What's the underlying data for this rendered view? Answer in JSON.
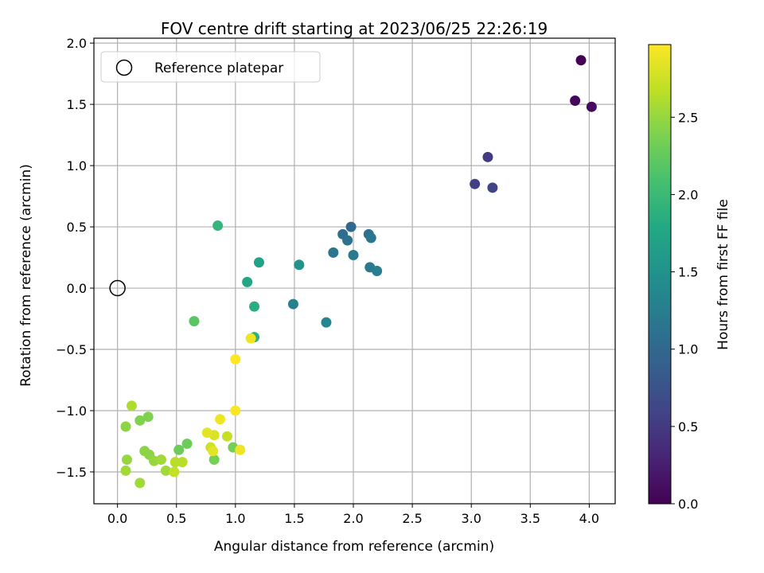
{
  "chart_data": {
    "type": "scatter",
    "title": "FOV centre drift starting at 2023/06/25 22:26:19",
    "xlabel": "Angular distance from reference (arcmin)",
    "ylabel": "Rotation from reference (arcmin)",
    "xlim": [
      -0.2,
      4.22
    ],
    "ylim": [
      -1.76,
      2.04
    ],
    "xticks": [
      "0.0",
      "0.5",
      "1.0",
      "1.5",
      "2.0",
      "2.5",
      "3.0",
      "3.5",
      "4.0"
    ],
    "yticks": [
      "−1.5",
      "−1.0",
      "−0.5",
      "0.0",
      "0.5",
      "1.0",
      "1.5",
      "2.0"
    ],
    "grid": true,
    "legend": {
      "position": "top-left",
      "entries": [
        "Reference platepar"
      ]
    },
    "colorbar": {
      "label": "Hours from first FF file",
      "range": [
        0.0,
        2.97
      ],
      "ticks": [
        "0.0",
        "0.5",
        "1.0",
        "1.5",
        "2.0",
        "2.5"
      ],
      "colormap": "viridis"
    },
    "reference_point": {
      "x": 0.0,
      "y": 0.0
    },
    "points": [
      {
        "x": 3.93,
        "y": 1.86,
        "h": 0.0
      },
      {
        "x": 3.88,
        "y": 1.53,
        "h": 0.05
      },
      {
        "x": 4.02,
        "y": 1.48,
        "h": 0.08
      },
      {
        "x": 3.14,
        "y": 1.07,
        "h": 0.5
      },
      {
        "x": 3.03,
        "y": 0.85,
        "h": 0.55
      },
      {
        "x": 3.18,
        "y": 0.82,
        "h": 0.6
      },
      {
        "x": 1.98,
        "y": 0.5,
        "h": 1.0
      },
      {
        "x": 1.91,
        "y": 0.44,
        "h": 1.05
      },
      {
        "x": 1.95,
        "y": 0.39,
        "h": 1.1
      },
      {
        "x": 2.13,
        "y": 0.44,
        "h": 1.1
      },
      {
        "x": 2.15,
        "y": 0.41,
        "h": 1.15
      },
      {
        "x": 1.83,
        "y": 0.29,
        "h": 1.15
      },
      {
        "x": 2.0,
        "y": 0.27,
        "h": 1.2
      },
      {
        "x": 2.14,
        "y": 0.17,
        "h": 1.2
      },
      {
        "x": 2.2,
        "y": 0.14,
        "h": 1.25
      },
      {
        "x": 1.49,
        "y": -0.13,
        "h": 1.3
      },
      {
        "x": 1.77,
        "y": -0.28,
        "h": 1.35
      },
      {
        "x": 1.54,
        "y": 0.19,
        "h": 1.5
      },
      {
        "x": 1.2,
        "y": 0.21,
        "h": 1.7
      },
      {
        "x": 1.1,
        "y": 0.05,
        "h": 1.75
      },
      {
        "x": 1.16,
        "y": -0.15,
        "h": 1.85
      },
      {
        "x": 1.16,
        "y": -0.4,
        "h": 1.9
      },
      {
        "x": 0.85,
        "y": 0.51,
        "h": 1.95
      },
      {
        "x": 0.65,
        "y": -0.27,
        "h": 2.2
      },
      {
        "x": 0.52,
        "y": -1.32,
        "h": 2.3
      },
      {
        "x": 0.59,
        "y": -1.27,
        "h": 2.3
      },
      {
        "x": 0.82,
        "y": -1.4,
        "h": 2.35
      },
      {
        "x": 0.98,
        "y": -1.3,
        "h": 2.35
      },
      {
        "x": 0.26,
        "y": -1.05,
        "h": 2.4
      },
      {
        "x": 0.19,
        "y": -1.08,
        "h": 2.4
      },
      {
        "x": 0.07,
        "y": -1.13,
        "h": 2.45
      },
      {
        "x": 0.23,
        "y": -1.33,
        "h": 2.45
      },
      {
        "x": 0.27,
        "y": -1.36,
        "h": 2.45
      },
      {
        "x": 0.31,
        "y": -1.41,
        "h": 2.5
      },
      {
        "x": 0.37,
        "y": -1.4,
        "h": 2.55
      },
      {
        "x": 0.08,
        "y": -1.4,
        "h": 2.5
      },
      {
        "x": 0.07,
        "y": -1.49,
        "h": 2.55
      },
      {
        "x": 0.19,
        "y": -1.59,
        "h": 2.55
      },
      {
        "x": 0.41,
        "y": -1.49,
        "h": 2.55
      },
      {
        "x": 0.12,
        "y": -0.96,
        "h": 2.6
      },
      {
        "x": 0.49,
        "y": -1.42,
        "h": 2.65
      },
      {
        "x": 0.55,
        "y": -1.42,
        "h": 2.65
      },
      {
        "x": 0.48,
        "y": -1.5,
        "h": 2.7
      },
      {
        "x": 0.93,
        "y": -1.21,
        "h": 2.7
      },
      {
        "x": 0.79,
        "y": -1.3,
        "h": 2.75
      },
      {
        "x": 0.82,
        "y": -1.2,
        "h": 2.8
      },
      {
        "x": 0.81,
        "y": -1.33,
        "h": 2.85
      },
      {
        "x": 0.76,
        "y": -1.18,
        "h": 2.85
      },
      {
        "x": 0.87,
        "y": -1.07,
        "h": 2.9
      },
      {
        "x": 1.04,
        "y": -1.32,
        "h": 2.9
      },
      {
        "x": 1.13,
        "y": -0.41,
        "h": 2.9
      },
      {
        "x": 1.0,
        "y": -1.0,
        "h": 2.95
      },
      {
        "x": 1.0,
        "y": -0.58,
        "h": 2.97
      }
    ]
  }
}
